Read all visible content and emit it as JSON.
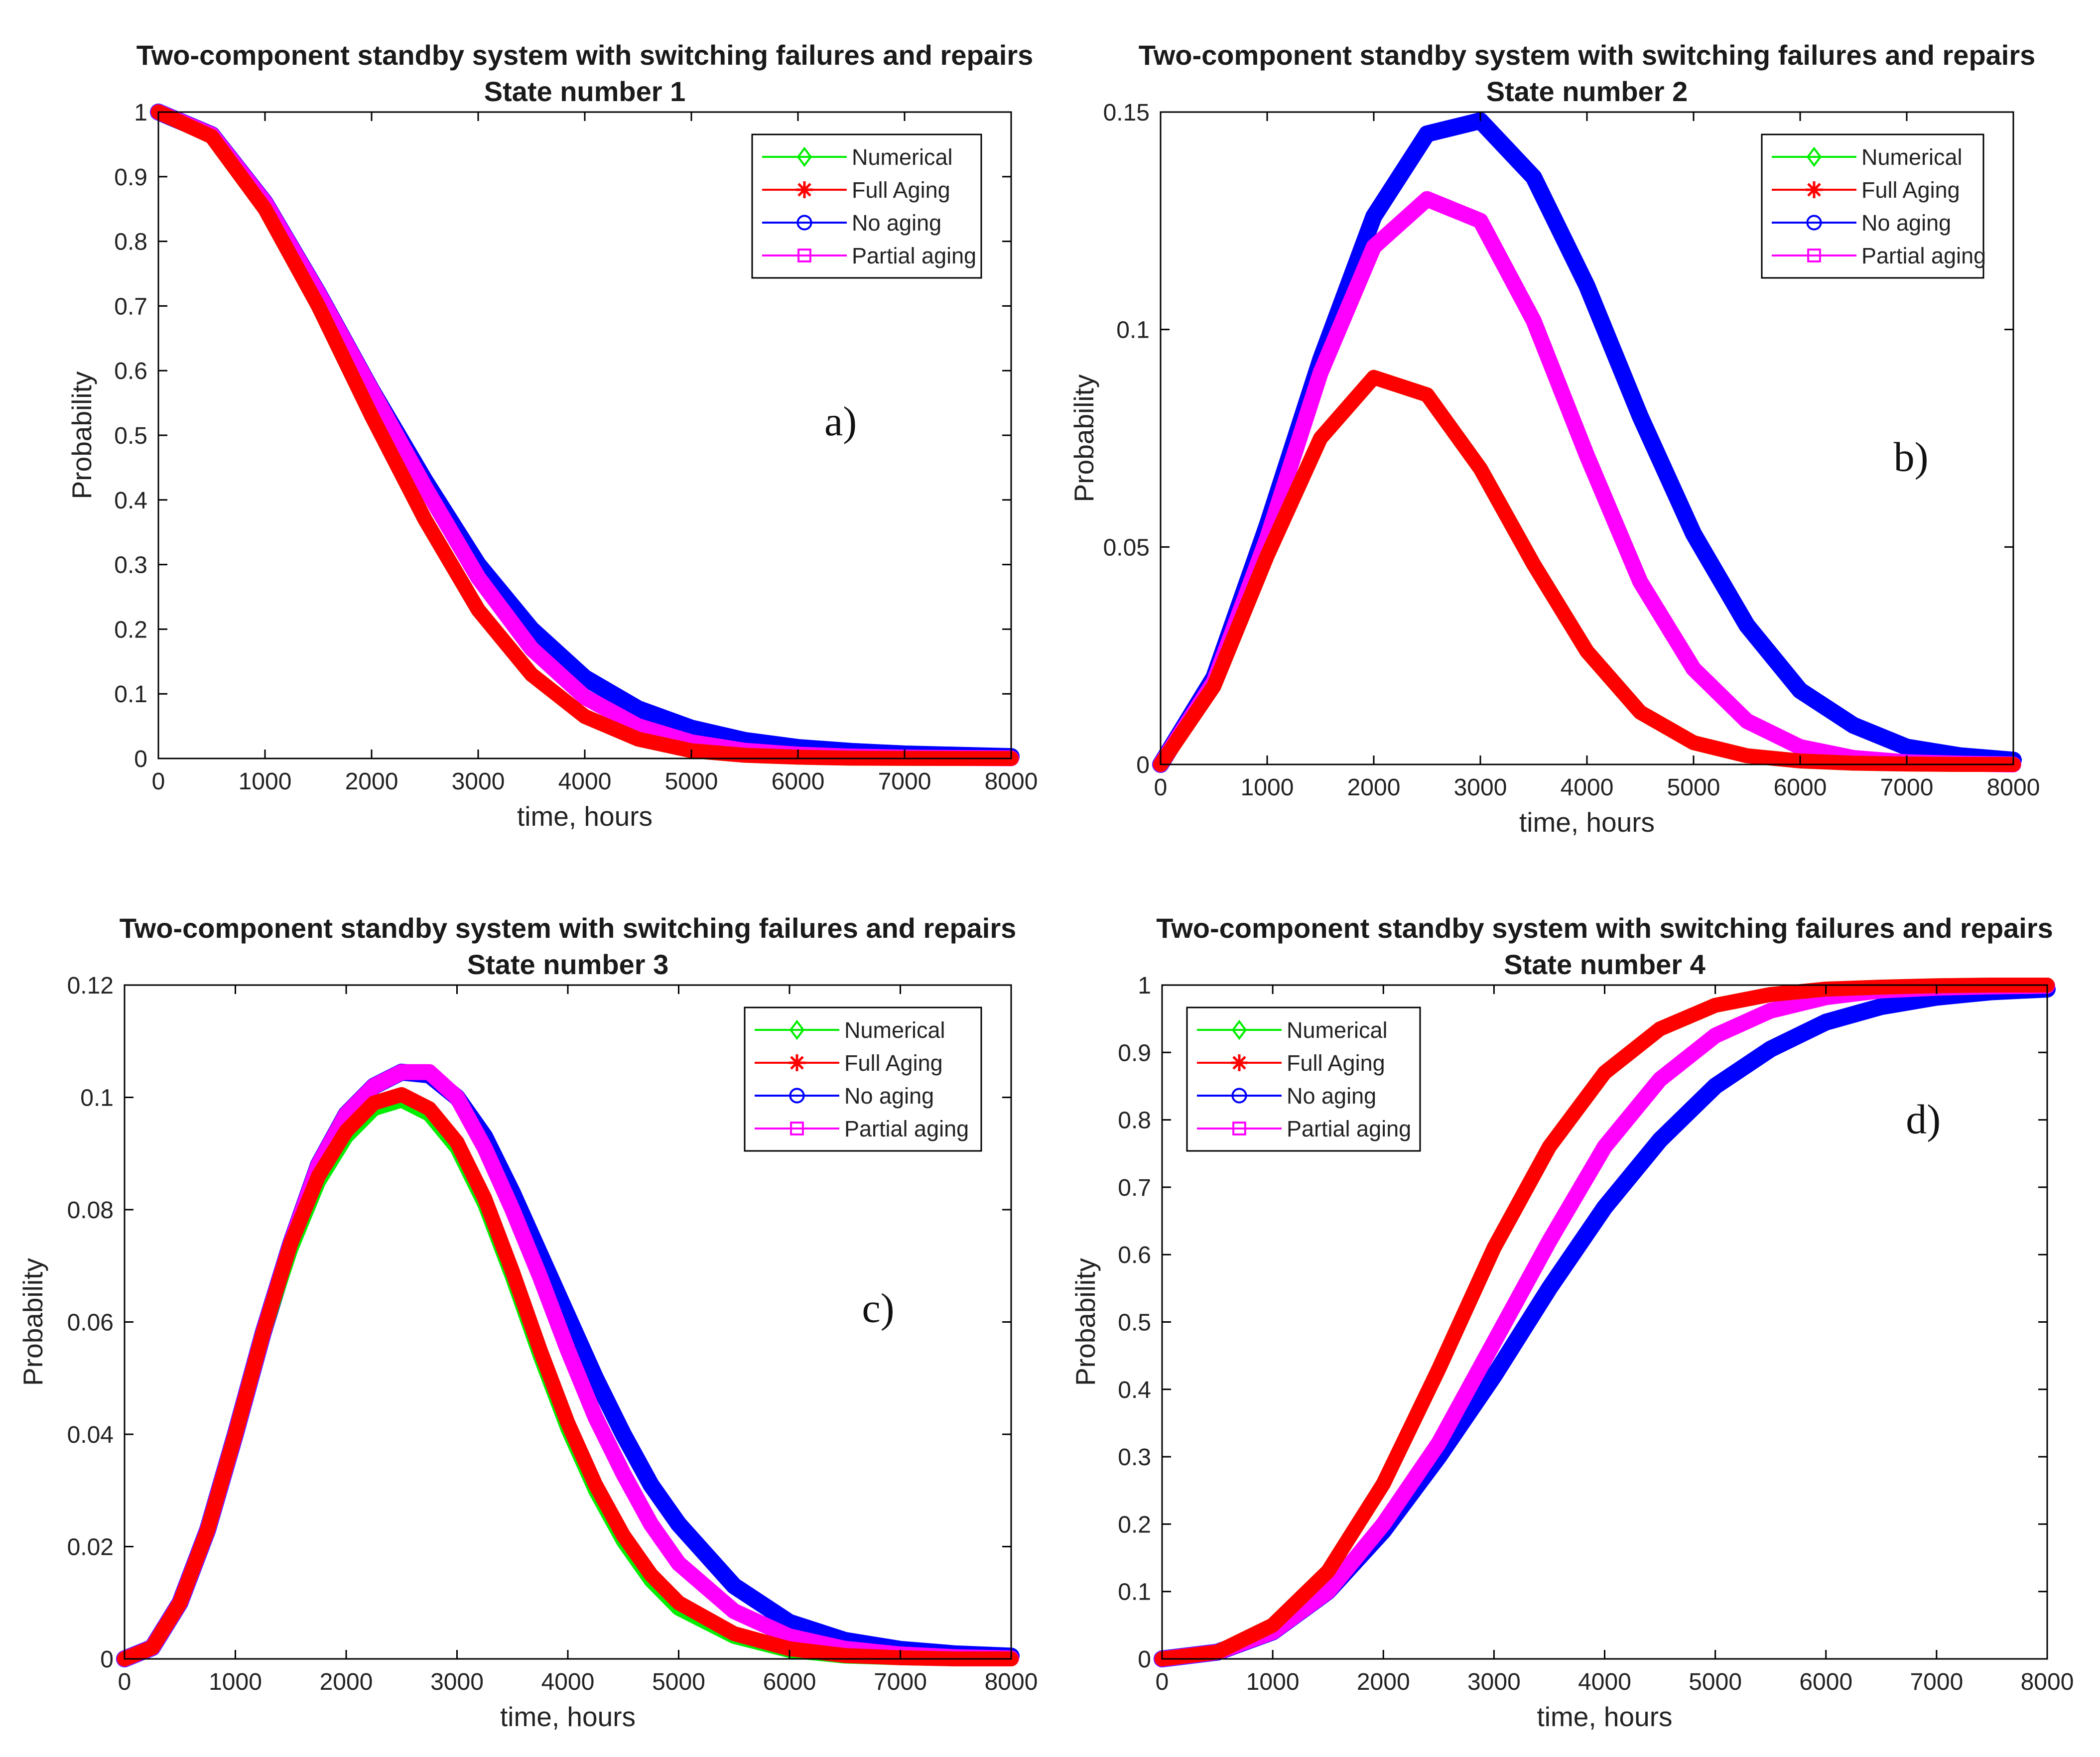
{
  "chart_data": [
    {
      "type": "line",
      "panel_letter": "a)",
      "title": "Two-component standby system with switching failures and repairs",
      "subtitle": "State number 1",
      "xlabel": "time, hours",
      "ylabel": "Probability",
      "xlim": [
        0,
        8000
      ],
      "ylim": [
        0,
        1
      ],
      "xticks": [
        0,
        1000,
        2000,
        3000,
        4000,
        5000,
        6000,
        7000,
        8000
      ],
      "xtick_labels": [
        "0",
        "1000",
        "2000",
        "3000",
        "4000",
        "5000",
        "6000",
        "7000",
        "8000"
      ],
      "yticks": [
        0,
        0.1,
        0.2,
        0.3,
        0.4,
        0.5,
        0.6,
        0.7,
        0.8,
        0.9,
        1
      ],
      "ytick_labels": [
        "0",
        "0.1",
        "0.2",
        "0.3",
        "0.4",
        "0.5",
        "0.6",
        "0.7",
        "0.8",
        "0.9",
        "1"
      ],
      "legend_position": "top-right",
      "grid": false,
      "x": [
        0,
        500,
        1000,
        1500,
        2000,
        2500,
        3000,
        3500,
        4000,
        4500,
        5000,
        5500,
        6000,
        6500,
        7000,
        7500,
        8000
      ],
      "series": [
        {
          "name": "Numerical",
          "color": "#00ee00",
          "marker": "diamond",
          "values": [
            1.0,
            0.962,
            0.85,
            0.7,
            0.53,
            0.37,
            0.23,
            0.13,
            0.065,
            0.03,
            0.012,
            0.005,
            0.002,
            0.0005,
            0.0002,
            0.0,
            0.0
          ]
        },
        {
          "name": "Full Aging",
          "color": "#ff0000",
          "marker": "asterisk",
          "values": [
            1.0,
            0.962,
            0.85,
            0.7,
            0.53,
            0.37,
            0.23,
            0.13,
            0.065,
            0.03,
            0.012,
            0.005,
            0.002,
            0.0005,
            0.0002,
            0.0,
            0.0
          ]
        },
        {
          "name": "No aging",
          "color": "#0000ff",
          "marker": "circle",
          "values": [
            1.0,
            0.965,
            0.86,
            0.72,
            0.57,
            0.43,
            0.3,
            0.2,
            0.125,
            0.077,
            0.047,
            0.028,
            0.017,
            0.011,
            0.007,
            0.005,
            0.003
          ]
        },
        {
          "name": "Partial aging",
          "color": "#ff00ff",
          "marker": "square",
          "values": [
            1.0,
            0.965,
            0.86,
            0.72,
            0.57,
            0.42,
            0.28,
            0.17,
            0.095,
            0.05,
            0.025,
            0.012,
            0.006,
            0.003,
            0.0015,
            0.0008,
            0.0004
          ]
        }
      ]
    },
    {
      "type": "line",
      "panel_letter": "b)",
      "title": "Two-component standby system with switching failures and repairs",
      "subtitle": "State number 2",
      "xlabel": "time, hours",
      "ylabel": "Probability",
      "xlim": [
        0,
        8000
      ],
      "ylim": [
        0,
        0.15
      ],
      "xticks": [
        0,
        1000,
        2000,
        3000,
        4000,
        5000,
        6000,
        7000,
        8000
      ],
      "xtick_labels": [
        "0",
        "1000",
        "2000",
        "3000",
        "4000",
        "5000",
        "6000",
        "7000",
        "8000"
      ],
      "yticks": [
        0,
        0.05,
        0.1,
        0.15
      ],
      "ytick_labels": [
        "0",
        "0.05",
        "0.1",
        "0.15"
      ],
      "legend_position": "top-right",
      "grid": false,
      "x": [
        0,
        500,
        1000,
        1500,
        2000,
        2500,
        3000,
        3500,
        4000,
        4500,
        5000,
        5500,
        6000,
        6500,
        7000,
        7500,
        8000
      ],
      "series": [
        {
          "name": "Numerical",
          "color": "#00ee00",
          "marker": "diamond",
          "values": [
            0.0,
            0.018,
            0.048,
            0.075,
            0.089,
            0.085,
            0.068,
            0.046,
            0.026,
            0.012,
            0.005,
            0.002,
            0.0008,
            0.0003,
            0.0001,
            0.0,
            0.0
          ]
        },
        {
          "name": "Full Aging",
          "color": "#ff0000",
          "marker": "asterisk",
          "values": [
            0.0,
            0.018,
            0.048,
            0.075,
            0.089,
            0.085,
            0.068,
            0.046,
            0.026,
            0.012,
            0.005,
            0.002,
            0.0008,
            0.0003,
            0.0001,
            0.0,
            0.0
          ]
        },
        {
          "name": "No aging",
          "color": "#0000ff",
          "marker": "circle",
          "values": [
            0.0,
            0.02,
            0.055,
            0.093,
            0.126,
            0.145,
            0.148,
            0.135,
            0.11,
            0.08,
            0.053,
            0.032,
            0.017,
            0.009,
            0.004,
            0.002,
            0.001
          ]
        },
        {
          "name": "Partial aging",
          "color": "#ff00ff",
          "marker": "square",
          "values": [
            0.0,
            0.019,
            0.052,
            0.09,
            0.119,
            0.13,
            0.125,
            0.102,
            0.071,
            0.042,
            0.022,
            0.01,
            0.004,
            0.0015,
            0.0005,
            0.0002,
            0.0
          ]
        }
      ]
    },
    {
      "type": "line",
      "panel_letter": "c)",
      "title": "Two-component standby system with switching failures and repairs",
      "subtitle": "State number 3",
      "xlabel": "time, hours",
      "ylabel": "Probability",
      "xlim": [
        0,
        8000
      ],
      "ylim": [
        0,
        0.12
      ],
      "xticks": [
        0,
        1000,
        2000,
        3000,
        4000,
        5000,
        6000,
        7000,
        8000
      ],
      "xtick_labels": [
        "0",
        "1000",
        "2000",
        "3000",
        "4000",
        "5000",
        "6000",
        "7000",
        "8000"
      ],
      "yticks": [
        0,
        0.02,
        0.04,
        0.06,
        0.08,
        0.1,
        0.12
      ],
      "ytick_labels": [
        "0",
        "0.02",
        "0.04",
        "0.06",
        "0.08",
        "0.1",
        "0.12"
      ],
      "legend_position": "top-right",
      "grid": false,
      "x": [
        0,
        250,
        500,
        750,
        1000,
        1250,
        1500,
        1750,
        2000,
        2250,
        2500,
        2750,
        3000,
        3250,
        3500,
        3750,
        4000,
        4250,
        4500,
        4750,
        5000,
        5500,
        6000,
        6500,
        7000,
        7500,
        8000
      ],
      "series": [
        {
          "name": "Numerical",
          "color": "#00ee00",
          "marker": "diamond",
          "values": [
            0.0,
            0.002,
            0.01,
            0.023,
            0.04,
            0.058,
            0.073,
            0.085,
            0.093,
            0.098,
            0.0995,
            0.097,
            0.091,
            0.081,
            0.068,
            0.054,
            0.041,
            0.03,
            0.021,
            0.014,
            0.009,
            0.004,
            0.0015,
            0.0005,
            0.0002,
            0.0,
            0.0
          ]
        },
        {
          "name": "Full Aging",
          "color": "#ff0000",
          "marker": "asterisk",
          "values": [
            0.0,
            0.002,
            0.01,
            0.023,
            0.04,
            0.058,
            0.074,
            0.086,
            0.094,
            0.099,
            0.1005,
            0.098,
            0.092,
            0.082,
            0.069,
            0.055,
            0.042,
            0.031,
            0.022,
            0.015,
            0.01,
            0.0045,
            0.0018,
            0.0006,
            0.0002,
            0.0,
            0.0
          ]
        },
        {
          "name": "No aging",
          "color": "#0000ff",
          "marker": "circle",
          "values": [
            0.0,
            0.002,
            0.01,
            0.023,
            0.04,
            0.058,
            0.074,
            0.088,
            0.097,
            0.102,
            0.1045,
            0.104,
            0.1,
            0.093,
            0.083,
            0.072,
            0.061,
            0.05,
            0.04,
            0.031,
            0.024,
            0.013,
            0.0065,
            0.0033,
            0.0017,
            0.0009,
            0.0005
          ]
        },
        {
          "name": "Partial aging",
          "color": "#ff00ff",
          "marker": "square",
          "values": [
            0.0,
            0.002,
            0.01,
            0.023,
            0.04,
            0.058,
            0.074,
            0.088,
            0.097,
            0.102,
            0.1045,
            0.1045,
            0.1,
            0.091,
            0.08,
            0.068,
            0.055,
            0.043,
            0.033,
            0.024,
            0.017,
            0.0085,
            0.004,
            0.0018,
            0.0008,
            0.0003,
            0.0001
          ]
        }
      ]
    },
    {
      "type": "line",
      "panel_letter": "d)",
      "title": "Two-component standby system with switching failures and repairs",
      "subtitle": "State number 4",
      "xlabel": "time, hours",
      "ylabel": "Probability",
      "xlim": [
        0,
        8000
      ],
      "ylim": [
        0,
        1
      ],
      "xticks": [
        0,
        1000,
        2000,
        3000,
        4000,
        5000,
        6000,
        7000,
        8000
      ],
      "xtick_labels": [
        "0",
        "1000",
        "2000",
        "3000",
        "4000",
        "5000",
        "6000",
        "7000",
        "8000"
      ],
      "yticks": [
        0,
        0.1,
        0.2,
        0.3,
        0.4,
        0.5,
        0.6,
        0.7,
        0.8,
        0.9,
        1
      ],
      "ytick_labels": [
        "0",
        "0.1",
        "0.2",
        "0.3",
        "0.4",
        "0.5",
        "0.6",
        "0.7",
        "0.8",
        "0.9",
        "1"
      ],
      "legend_position": "top-left",
      "grid": false,
      "x": [
        0,
        500,
        1000,
        1500,
        2000,
        2500,
        3000,
        3500,
        4000,
        4500,
        5000,
        5500,
        6000,
        6500,
        7000,
        7500,
        8000
      ],
      "series": [
        {
          "name": "Numerical",
          "color": "#00ee00",
          "marker": "diamond",
          "values": [
            0.0,
            0.01,
            0.05,
            0.13,
            0.26,
            0.43,
            0.61,
            0.76,
            0.87,
            0.935,
            0.97,
            0.986,
            0.994,
            0.997,
            0.999,
            1.0,
            1.0
          ]
        },
        {
          "name": "Full Aging",
          "color": "#ff0000",
          "marker": "asterisk",
          "values": [
            0.0,
            0.01,
            0.05,
            0.13,
            0.26,
            0.43,
            0.61,
            0.76,
            0.87,
            0.935,
            0.97,
            0.986,
            0.994,
            0.997,
            0.999,
            1.0,
            1.0
          ]
        },
        {
          "name": "No aging",
          "color": "#0000ff",
          "marker": "circle",
          "values": [
            0.0,
            0.01,
            0.04,
            0.1,
            0.19,
            0.3,
            0.42,
            0.55,
            0.67,
            0.77,
            0.85,
            0.905,
            0.945,
            0.968,
            0.982,
            0.99,
            0.994
          ]
        },
        {
          "name": "Partial aging",
          "color": "#ff00ff",
          "marker": "square",
          "values": [
            0.0,
            0.01,
            0.04,
            0.1,
            0.2,
            0.32,
            0.47,
            0.62,
            0.76,
            0.86,
            0.925,
            0.962,
            0.982,
            0.992,
            0.996,
            0.998,
            0.999
          ]
        }
      ]
    }
  ]
}
